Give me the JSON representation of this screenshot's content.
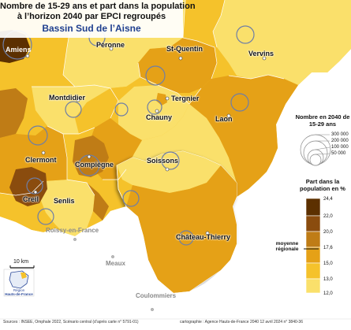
{
  "title": {
    "line1": "Nombre de 15-29 ans et part dans la population",
    "line2": "à l’horizon 2040 par EPCI regroupés",
    "subtitle": "Bassin Sud de l’Aisne"
  },
  "places": {
    "amiens": "Amiens",
    "peronne": "Péronne",
    "saint_quentin": "St-Quentin",
    "vervins": "Vervins",
    "montdidier": "Montdidier",
    "tergnier": "Tergnier",
    "chauny": "Chauny",
    "laon": "Laon",
    "soissons": "Soissons",
    "clermont": "Clermont",
    "compiegne": "Compiègne",
    "creil": "Creil",
    "senlis": "Senlis",
    "chateau_thierry": "Château-Thierry"
  },
  "outside_places": {
    "roissy": "Roissy-en-France",
    "meaux": "Meaux",
    "coulommiers": "Coulommiers"
  },
  "legend": {
    "size_title": "Nombre en 2040 de 15-29 ans",
    "size_values": [
      "300 000",
      "200 000",
      "100 000",
      "50 000"
    ],
    "share_title": "Part dans la population en %",
    "class_breaks": [
      "24,4",
      "22,0",
      "20,0",
      "17,6",
      "15,0",
      "13,0",
      "12,0"
    ],
    "class_colors": [
      "#5c3000",
      "#8a4c0e",
      "#bf7c16",
      "#e5a117",
      "#f5c22b",
      "#fae06b"
    ],
    "regional_average_label": "moyenne régionale"
  },
  "scale_label": "10 km",
  "logo": {
    "line1": "Région",
    "line2": "Hauts-de-France"
  },
  "footer": {
    "sources": "Sources : INSEE, Omphale 2022, Scénario central (d’après carte n° 5791-01)",
    "credits": "cartographie : Agence Hauts-de-France 2040     12 avril 2024  n° 3840-36"
  },
  "colors": {
    "class_1": "#5c3000",
    "class_2": "#8a4c0e",
    "class_3": "#bf7c16",
    "class_4": "#e5a117",
    "class_5": "#f5c22b",
    "class_6": "#fae06b",
    "outside_region": "#ffffff",
    "circle_stroke": "#6e7ea6",
    "boundary": "#ffffff"
  }
}
